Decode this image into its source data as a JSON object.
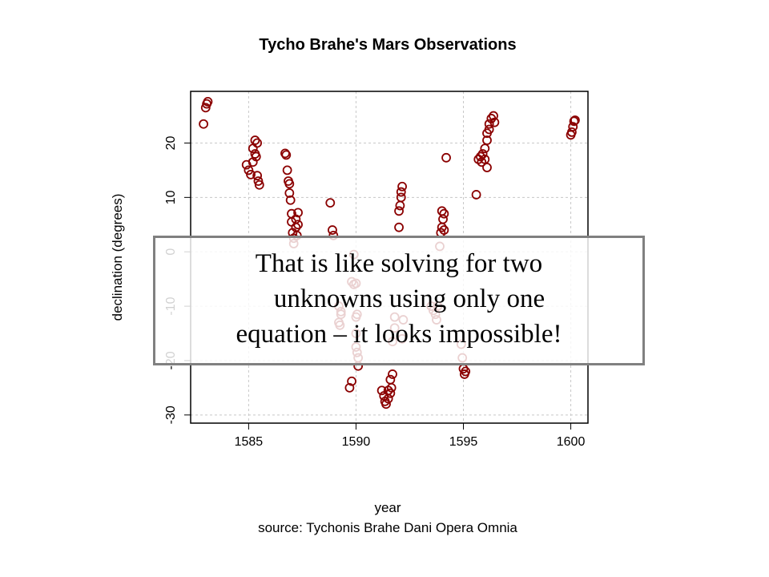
{
  "chart_data": {
    "type": "scatter",
    "title": "Tycho Brahe's Mars Observations",
    "xlabel": "year",
    "ylabel": "declination (degrees)",
    "source_note": "source: Tychonis Brahe Dani Opera Omnia",
    "xlim": [
      1582.3,
      1600.8
    ],
    "ylim": [
      -31.5,
      29.5
    ],
    "x_ticks": [
      1585,
      1590,
      1595,
      1600
    ],
    "y_ticks": [
      -30,
      -20,
      -10,
      0,
      10,
      20
    ],
    "grid": true,
    "marker": "open-circle",
    "series_color": "#8b0000",
    "points": [
      [
        1582.9,
        23.5
      ],
      [
        1583.0,
        26.5
      ],
      [
        1583.05,
        27.2
      ],
      [
        1583.1,
        27.6
      ],
      [
        1584.9,
        16.0
      ],
      [
        1585.0,
        15.0
      ],
      [
        1585.1,
        14.2
      ],
      [
        1585.2,
        16.5
      ],
      [
        1585.3,
        18.0
      ],
      [
        1585.2,
        19.0
      ],
      [
        1585.3,
        20.5
      ],
      [
        1585.4,
        20.0
      ],
      [
        1585.35,
        17.5
      ],
      [
        1585.4,
        14.0
      ],
      [
        1585.45,
        13.0
      ],
      [
        1585.5,
        12.3
      ],
      [
        1586.7,
        18.1
      ],
      [
        1586.75,
        17.8
      ],
      [
        1586.8,
        15.0
      ],
      [
        1586.85,
        13.0
      ],
      [
        1586.9,
        12.5
      ],
      [
        1586.9,
        10.8
      ],
      [
        1586.95,
        9.5
      ],
      [
        1587.0,
        7.0
      ],
      [
        1587.0,
        5.5
      ],
      [
        1587.05,
        3.5
      ],
      [
        1587.1,
        2.5
      ],
      [
        1587.1,
        1.5
      ],
      [
        1587.2,
        6.0
      ],
      [
        1587.2,
        4.5
      ],
      [
        1587.3,
        7.2
      ],
      [
        1587.3,
        5.0
      ],
      [
        1587.25,
        3.0
      ],
      [
        1588.8,
        9.0
      ],
      [
        1588.9,
        4.0
      ],
      [
        1588.95,
        3.0
      ],
      [
        1589.2,
        -10.0
      ],
      [
        1589.3,
        -11.5
      ],
      [
        1589.2,
        -13.0
      ],
      [
        1589.25,
        -13.5
      ],
      [
        1589.3,
        -11.0
      ],
      [
        1589.7,
        -25.0
      ],
      [
        1589.8,
        -23.8
      ],
      [
        1589.9,
        -0.5
      ],
      [
        1589.8,
        -5.5
      ],
      [
        1589.9,
        -6.0
      ],
      [
        1590.0,
        -5.8
      ],
      [
        1590.0,
        -12.0
      ],
      [
        1590.05,
        -11.5
      ],
      [
        1590.0,
        -15.0
      ],
      [
        1590.0,
        -17.5
      ],
      [
        1590.05,
        -18.5
      ],
      [
        1590.1,
        -19.5
      ],
      [
        1590.1,
        -21.0
      ],
      [
        1591.2,
        -25.5
      ],
      [
        1591.3,
        -26.5
      ],
      [
        1591.35,
        -27.5
      ],
      [
        1591.4,
        -28.0
      ],
      [
        1591.5,
        -27.0
      ],
      [
        1591.5,
        -25.5
      ],
      [
        1591.6,
        -26.0
      ],
      [
        1591.65,
        -25.0
      ],
      [
        1591.7,
        -22.5
      ],
      [
        1591.6,
        -23.5
      ],
      [
        1591.7,
        -16.5
      ],
      [
        1591.8,
        -14.0
      ],
      [
        1591.8,
        -12.0
      ],
      [
        1592.0,
        4.5
      ],
      [
        1592.0,
        7.5
      ],
      [
        1592.05,
        8.5
      ],
      [
        1592.1,
        10.0
      ],
      [
        1592.1,
        11.0
      ],
      [
        1592.15,
        12.0
      ],
      [
        1592.2,
        -12.5
      ],
      [
        1592.15,
        -16.0
      ],
      [
        1593.5,
        -10.0
      ],
      [
        1593.6,
        -10.8
      ],
      [
        1593.7,
        -11.5
      ],
      [
        1593.75,
        -12.5
      ],
      [
        1593.8,
        -10.0
      ],
      [
        1593.9,
        1.0
      ],
      [
        1593.95,
        3.5
      ],
      [
        1594.0,
        4.5
      ],
      [
        1594.05,
        6.0
      ],
      [
        1594.0,
        7.5
      ],
      [
        1594.1,
        7.0
      ],
      [
        1594.1,
        4.0
      ],
      [
        1594.2,
        17.3
      ],
      [
        1594.9,
        -17.0
      ],
      [
        1594.95,
        -19.5
      ],
      [
        1595.0,
        -21.5
      ],
      [
        1595.05,
        -22.5
      ],
      [
        1595.1,
        -22.0
      ],
      [
        1595.6,
        10.5
      ],
      [
        1595.7,
        17.0
      ],
      [
        1595.8,
        17.5
      ],
      [
        1595.85,
        16.5
      ],
      [
        1595.9,
        18.0
      ],
      [
        1596.0,
        17.0
      ],
      [
        1596.1,
        15.5
      ],
      [
        1596.0,
        19.0
      ],
      [
        1596.1,
        20.5
      ],
      [
        1596.1,
        21.8
      ],
      [
        1596.2,
        22.5
      ],
      [
        1596.2,
        23.5
      ],
      [
        1596.3,
        24.5
      ],
      [
        1596.4,
        25.0
      ],
      [
        1596.45,
        23.8
      ],
      [
        1600.0,
        21.5
      ],
      [
        1600.05,
        22.0
      ],
      [
        1600.1,
        23.0
      ],
      [
        1600.15,
        24.0
      ],
      [
        1600.2,
        24.2
      ]
    ]
  },
  "overlay": {
    "line1": "That is like solving for two",
    "line2": "unknowns using only one",
    "line3": "equation – it looks impossible!"
  }
}
